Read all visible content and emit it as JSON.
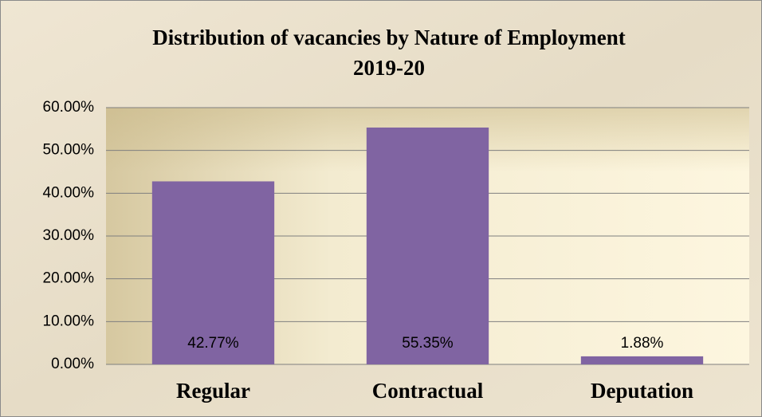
{
  "chart_data": {
    "type": "bar",
    "title": [
      "Distribution of vacancies by Nature of Employment",
      "2019-20"
    ],
    "categories": [
      "Regular",
      "Contractual",
      "Deputation"
    ],
    "values": [
      42.77,
      55.35,
      1.88
    ],
    "value_labels": [
      "42.77%",
      "55.35%",
      "1.88%"
    ],
    "color": "#8064a2",
    "ylim": [
      0,
      60
    ],
    "yticks": [
      {
        "value": 0,
        "label": "0.00%"
      },
      {
        "value": 10,
        "label": "10.00%"
      },
      {
        "value": 20,
        "label": "20.00%"
      },
      {
        "value": 30,
        "label": "30.00%"
      },
      {
        "value": 40,
        "label": "40.00%"
      },
      {
        "value": 50,
        "label": "50.00%"
      },
      {
        "value": 60,
        "label": "60.00%"
      }
    ],
    "grid": true
  }
}
